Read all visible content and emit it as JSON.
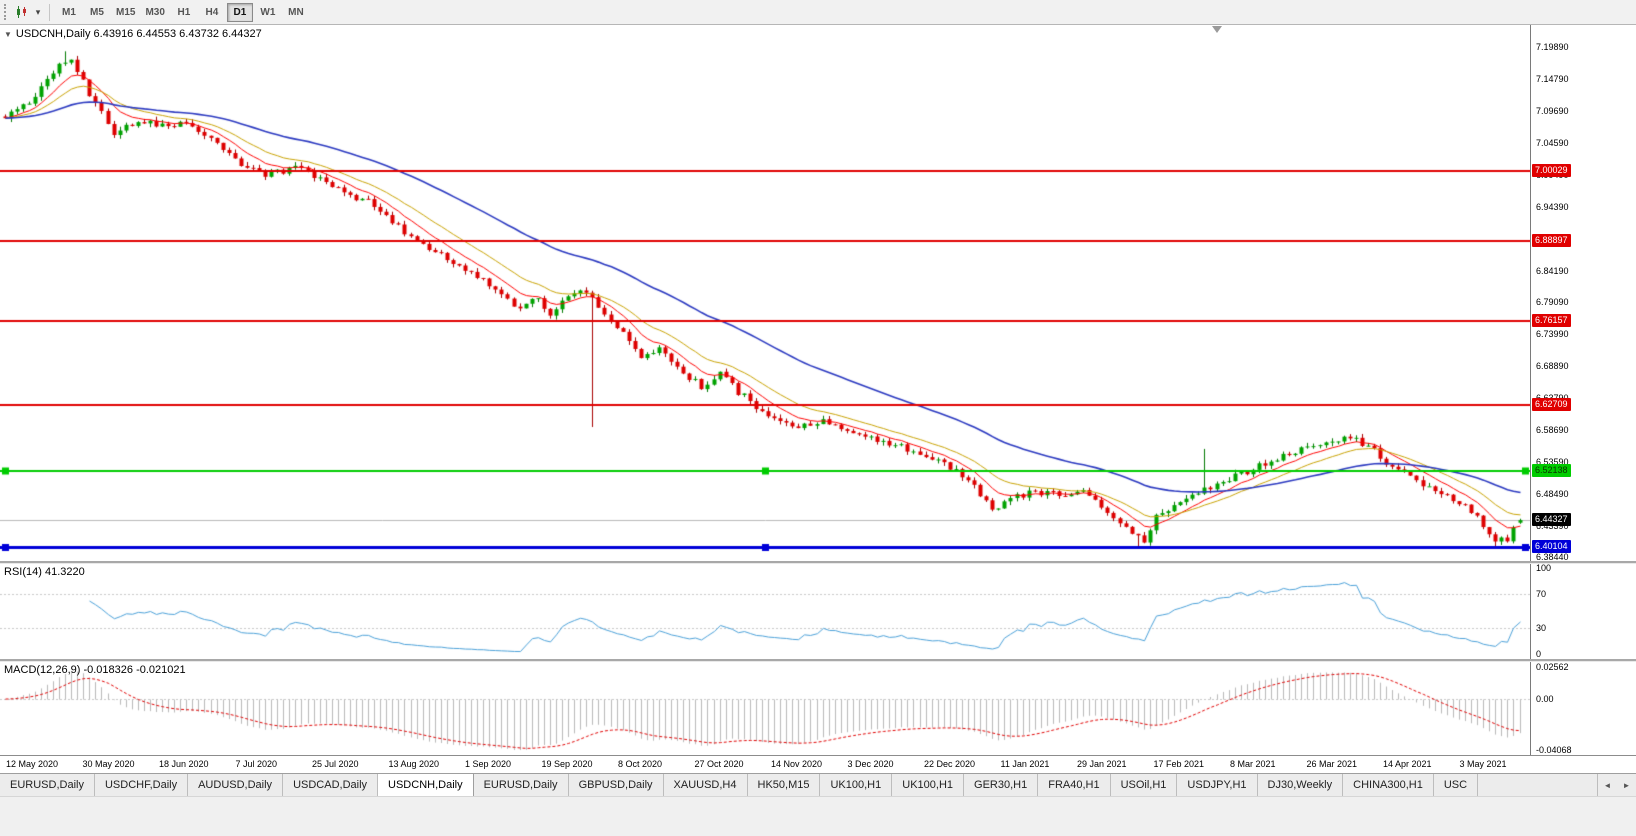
{
  "toolbar": {
    "timeframes": [
      "M1",
      "M5",
      "M15",
      "M30",
      "H1",
      "H4",
      "D1",
      "W1",
      "MN"
    ],
    "active_timeframe": "D1",
    "dropdown_glyph": "▾",
    "chart_type_icon": "candlestick-chart-icon"
  },
  "chart": {
    "collapse_glyph": "▼",
    "symbol": "USDCNH",
    "period": "Daily",
    "title": "USDCNH,Daily 6.43916 6.44553 6.43732 6.44327",
    "ohlc": {
      "open": "6.43916",
      "high": "6.44553",
      "low": "6.43732",
      "close": "6.44327"
    }
  },
  "colors": {
    "bull": "#00a300",
    "bear": "#de0000",
    "bull_wick": "#007a00",
    "bear_wick": "#a80000",
    "ma_fast": "#ff0000",
    "ma_mid": "#c8a200",
    "ma_slow": "#2b39c0",
    "rsi": "#4aa0d8",
    "macd_hist": "#b8b8b8",
    "macd_signal": "#e00000",
    "bid_line": "#b8b8b8",
    "line_red": "#e00000",
    "line_green": "#00cc00",
    "line_blue": "#0000d8",
    "current_badge": "#000000"
  },
  "price_badges": [
    {
      "name": "resistance-badge-1",
      "value": "7.00029",
      "color": "#e00000",
      "text_color": "#ffffff"
    },
    {
      "name": "resistance-badge-2",
      "value": "6.88897",
      "color": "#e00000",
      "text_color": "#ffffff"
    },
    {
      "name": "resistance-badge-3",
      "value": "6.76157",
      "color": "#e00000",
      "text_color": "#ffffff"
    },
    {
      "name": "resistance-badge-4",
      "value": "6.62709",
      "color": "#e00000",
      "text_color": "#ffffff"
    },
    {
      "name": "support-badge-green",
      "value": "6.52138",
      "color": "#00cc00",
      "text_color": "#0a3300"
    },
    {
      "name": "current-price-badge",
      "value": "6.44327",
      "color": "#000000",
      "text_color": "#ffffff"
    },
    {
      "name": "support-badge-blue",
      "value": "6.40104",
      "color": "#0000d8",
      "text_color": "#ffffff"
    }
  ],
  "indicators": {
    "rsi": {
      "label": "RSI(14) 41.3220",
      "period": 14,
      "value": 41.322,
      "axis_labels": [
        "100",
        "70",
        "30",
        "0"
      ],
      "levels": [
        70,
        30
      ]
    },
    "macd": {
      "label": "MACD(12,26,9) -0.018326 -0.021021",
      "fast": 12,
      "slow": 26,
      "signal": 9,
      "main_value": -0.018326,
      "signal_value": -0.021021,
      "axis_labels": [
        "0.02562",
        "0.00",
        "-0.04068"
      ],
      "range": [
        -0.04068,
        0.02562
      ]
    }
  },
  "tabs": {
    "items": [
      "EURUSD,Daily",
      "USDCHF,Daily",
      "AUDUSD,Daily",
      "USDCAD,Daily",
      "USDCNH,Daily",
      "EURUSD,Daily",
      "GBPUSD,Daily",
      "XAUUSD,H4",
      "HK50,M15",
      "UK100,H1",
      "UK100,H1",
      "GER30,H1",
      "FRA40,H1",
      "USOil,H1",
      "USDJPY,H1",
      "DJ30,Weekly",
      "CHINA300,H1",
      "USC"
    ],
    "active_index": 4,
    "scroll_left_glyph": "◄",
    "scroll_right_glyph": "►"
  },
  "chart_data": {
    "type": "candlestick",
    "symbol": "USDCNH",
    "timeframe": "Daily",
    "bars": 251,
    "current_price": 6.44327,
    "last_ohlc": {
      "open": 6.43916,
      "high": 6.44553,
      "low": 6.43732,
      "close": 6.44327
    },
    "price_axis": {
      "min": 6.3844,
      "max": 7.1989,
      "tick_labels": [
        "7.19890",
        "7.14790",
        "7.09690",
        "7.04590",
        "6.99490",
        "6.94390",
        "6.89290",
        "6.84190",
        "6.79090",
        "6.73990",
        "6.68890",
        "6.63790",
        "6.58690",
        "6.53590",
        "6.48490",
        "6.43390",
        "6.38440"
      ]
    },
    "x_tick_labels": [
      "12 May 2020",
      "30 May 2020",
      "18 Jun 2020",
      "7 Jul 2020",
      "25 Jul 2020",
      "13 Aug 2020",
      "1 Sep 2020",
      "19 Sep 2020",
      "8 Oct 2020",
      "27 Oct 2020",
      "14 Nov 2020",
      "3 Dec 2020",
      "22 Dec 2020",
      "11 Jan 2021",
      "29 Jan 2021",
      "17 Feb 2021",
      "8 Mar 2021",
      "26 Mar 2021",
      "14 Apr 2021",
      "3 May 2021"
    ],
    "price_path_anchors": [
      [
        0,
        7.088
      ],
      [
        3,
        7.102
      ],
      [
        6,
        7.135
      ],
      [
        9,
        7.168
      ],
      [
        11,
        7.183
      ],
      [
        14,
        7.122
      ],
      [
        18,
        7.063
      ],
      [
        22,
        7.083
      ],
      [
        26,
        7.072
      ],
      [
        30,
        7.077
      ],
      [
        35,
        7.048
      ],
      [
        39,
        7.012
      ],
      [
        43,
        6.996
      ],
      [
        48,
        7.006
      ],
      [
        52,
        6.988
      ],
      [
        56,
        6.966
      ],
      [
        60,
        6.952
      ],
      [
        64,
        6.918
      ],
      [
        68,
        6.888
      ],
      [
        72,
        6.866
      ],
      [
        77,
        6.838
      ],
      [
        81,
        6.812
      ],
      [
        85,
        6.782
      ],
      [
        88,
        6.796
      ],
      [
        90,
        6.772
      ],
      [
        93,
        6.798
      ],
      [
        96,
        6.812
      ],
      [
        99,
        6.772
      ],
      [
        102,
        6.74
      ],
      [
        105,
        6.705
      ],
      [
        108,
        6.717
      ],
      [
        111,
        6.687
      ],
      [
        115,
        6.658
      ],
      [
        118,
        6.676
      ],
      [
        121,
        6.648
      ],
      [
        124,
        6.625
      ],
      [
        127,
        6.607
      ],
      [
        131,
        6.595
      ],
      [
        135,
        6.601
      ],
      [
        140,
        6.58
      ],
      [
        144,
        6.573
      ],
      [
        148,
        6.562
      ],
      [
        153,
        6.542
      ],
      [
        157,
        6.524
      ],
      [
        160,
        6.498
      ],
      [
        163,
        6.458
      ],
      [
        166,
        6.478
      ],
      [
        170,
        6.489
      ],
      [
        174,
        6.483
      ],
      [
        178,
        6.492
      ],
      [
        182,
        6.459
      ],
      [
        186,
        6.421
      ],
      [
        188,
        6.409
      ],
      [
        190,
        6.452
      ],
      [
        194,
        6.473
      ],
      [
        198,
        6.491
      ],
      [
        203,
        6.513
      ],
      [
        207,
        6.529
      ],
      [
        211,
        6.546
      ],
      [
        216,
        6.566
      ],
      [
        219,
        6.573
      ],
      [
        222,
        6.577
      ],
      [
        225,
        6.562
      ],
      [
        228,
        6.537
      ],
      [
        231,
        6.52
      ],
      [
        234,
        6.501
      ],
      [
        237,
        6.488
      ],
      [
        240,
        6.471
      ],
      [
        243,
        6.449
      ],
      [
        246,
        6.409
      ],
      [
        248,
        6.414
      ],
      [
        249,
        6.429
      ],
      [
        250,
        6.44327
      ]
    ],
    "wick_events": [
      {
        "i": 10,
        "high": 7.192
      },
      {
        "i": 97,
        "low": 6.592
      },
      {
        "i": 187,
        "low": 6.401
      },
      {
        "i": 198,
        "high": 6.557
      },
      {
        "i": 246,
        "low": 6.398
      }
    ],
    "horizontal_lines": [
      {
        "price": 7.00029,
        "color": "#e00000",
        "width": 2,
        "handles": false
      },
      {
        "price": 6.88897,
        "color": "#e00000",
        "width": 2,
        "handles": false
      },
      {
        "price": 6.76157,
        "color": "#e00000",
        "width": 2,
        "handles": false
      },
      {
        "price": 6.62709,
        "color": "#e00000",
        "width": 2,
        "handles": false
      },
      {
        "price": 6.52138,
        "color": "#00cc00",
        "width": 2,
        "handles": true
      },
      {
        "price": 6.40104,
        "color": "#0000d8",
        "width": 3,
        "handles": true
      }
    ],
    "moving_averages": [
      {
        "period": 8,
        "color": "#ff0000"
      },
      {
        "period": 16,
        "color": "#c8a200"
      },
      {
        "period": 45,
        "color": "#2b39c0"
      }
    ],
    "indicators": {
      "rsi": {
        "period": 14,
        "last": 41.322,
        "range": [
          0,
          100
        ],
        "levels": [
          70,
          30
        ]
      },
      "macd": {
        "fast": 12,
        "slow": 26,
        "signal": 9,
        "last_main": -0.018326,
        "last_signal": -0.021021,
        "range": [
          -0.04068,
          0.02562
        ]
      }
    }
  }
}
